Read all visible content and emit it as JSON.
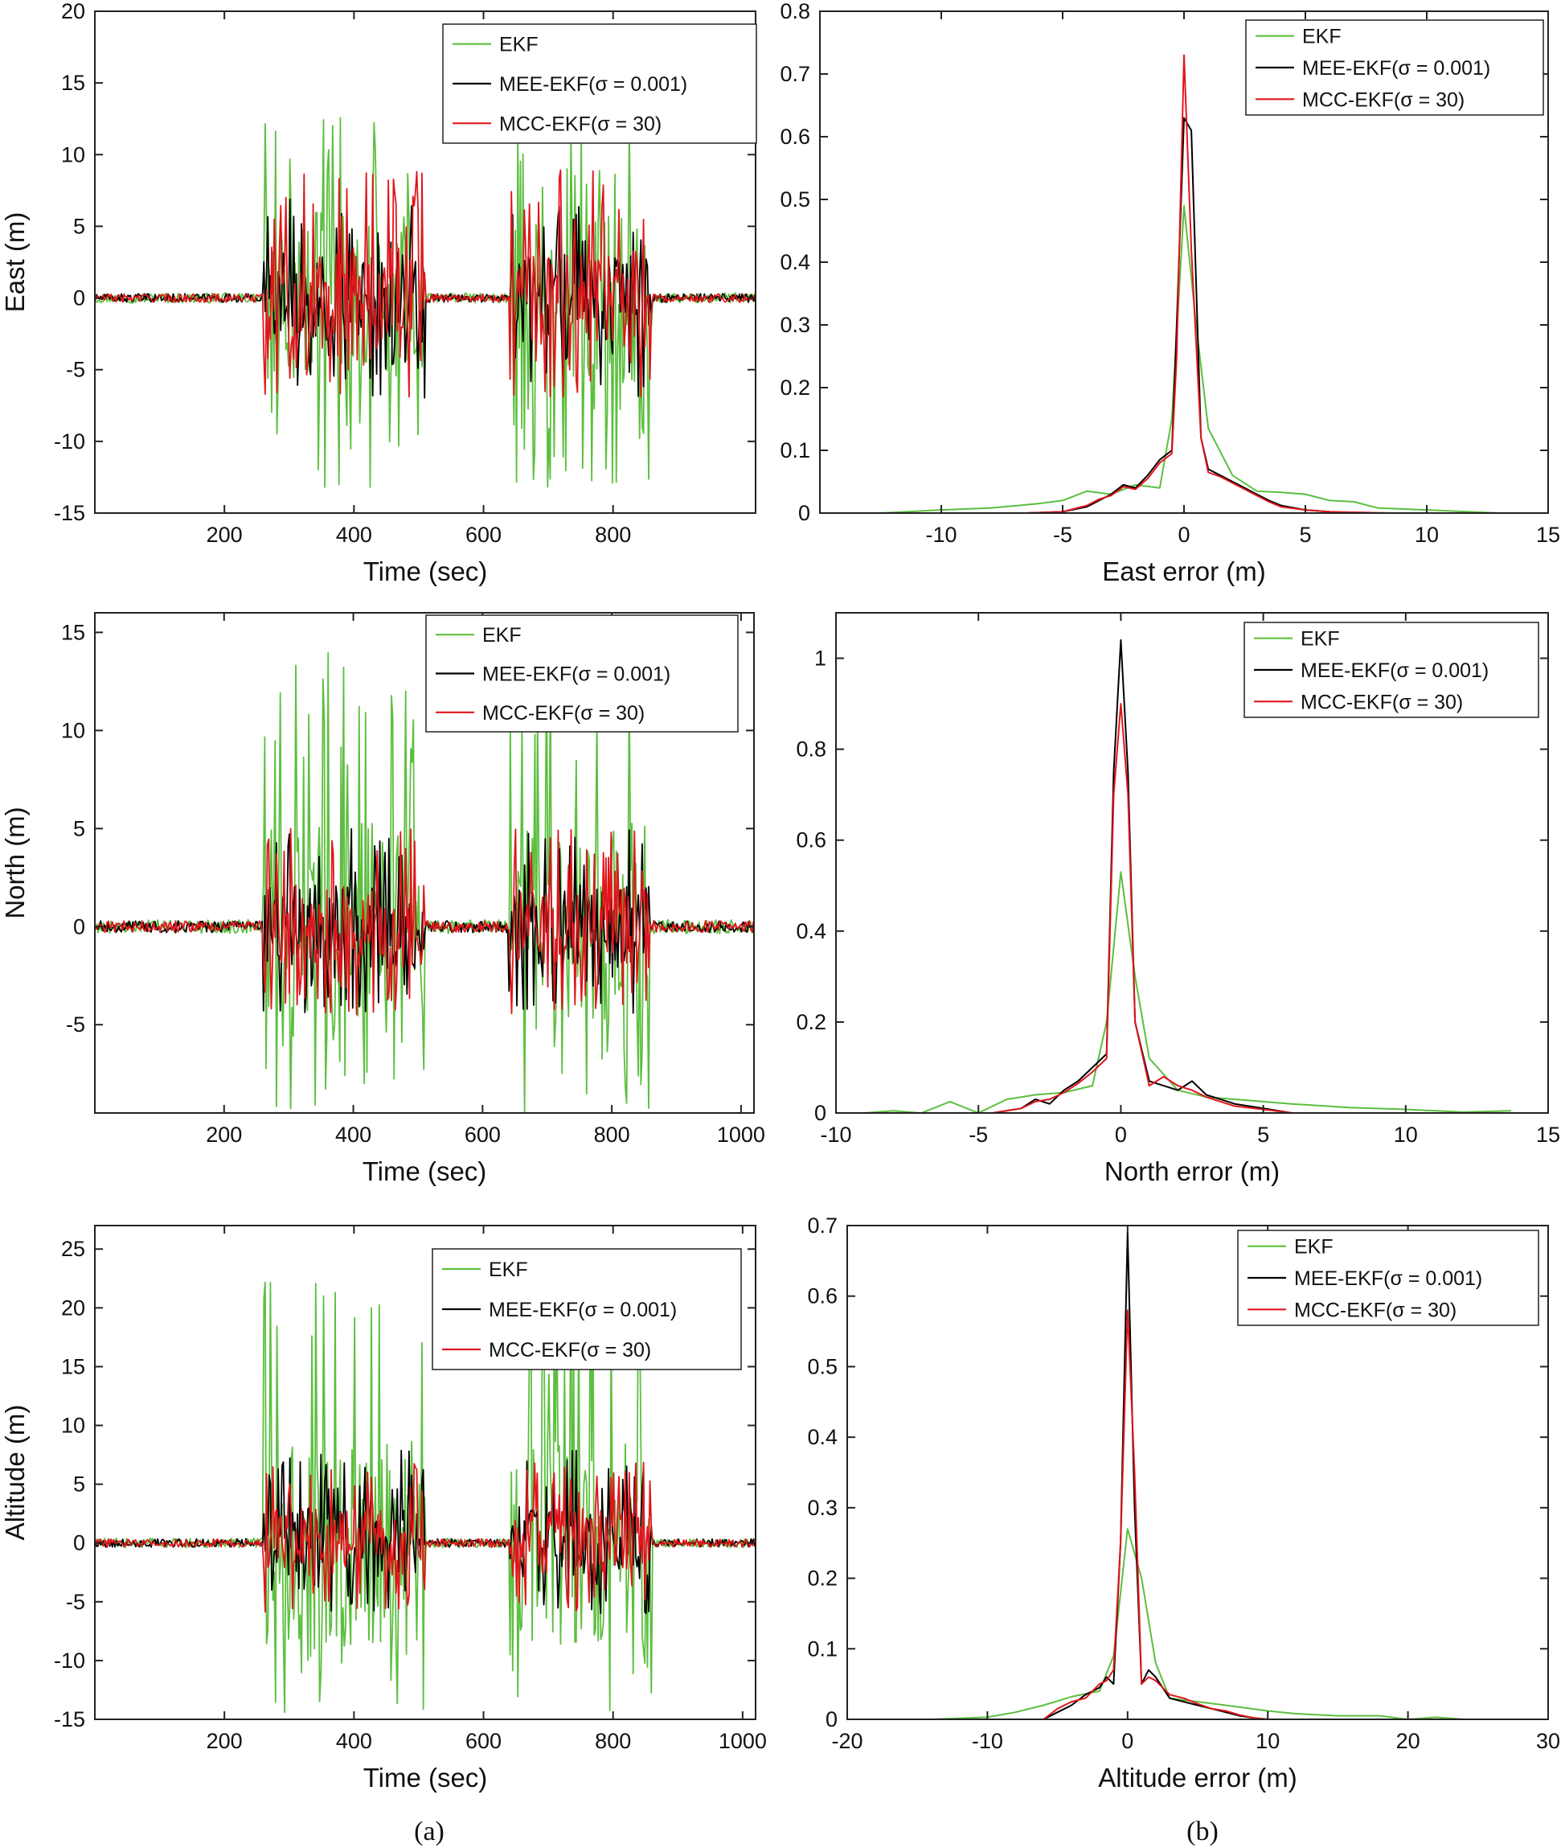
{
  "figure_captions": [
    "(a)",
    "(b)"
  ],
  "colors": {
    "EKF": "#5cbf3f",
    "MEE-EKF": "#000000",
    "MCC-EKF": "#e0161b",
    "axes": "#222222"
  },
  "chart_data": [
    {
      "id": "east-time",
      "type": "line",
      "title": "",
      "xlabel": "Time (sec)",
      "ylabel": "East (m)",
      "xlim": [
        0,
        1020
      ],
      "ylim": [
        -15,
        20
      ],
      "xticks": [
        200,
        400,
        600,
        800
      ],
      "yticks": [
        -15,
        -10,
        -5,
        0,
        5,
        10,
        15,
        20
      ],
      "legend_position": "top-right",
      "active_windows": [
        [
          260,
          510
        ],
        [
          640,
          860
        ]
      ],
      "series": [
        {
          "name": "EKF",
          "legend": "EKF",
          "color_key": "EKF",
          "noise_quiet": 0.35,
          "amp_active": [
            -13.3,
            13.4
          ]
        },
        {
          "name": "MEE-EKF",
          "legend": "MEE-EKF(σ = 0.001)",
          "color_key": "MEE-EKF",
          "noise_quiet": 0.3,
          "amp_active": [
            -7,
            7
          ]
        },
        {
          "name": "MCC-EKF",
          "legend": "MCC-EKF(σ = 30)",
          "color_key": "MCC-EKF",
          "noise_quiet": 0.3,
          "amp_active": [
            -7,
            9
          ]
        }
      ]
    },
    {
      "id": "east-hist",
      "type": "line",
      "title": "",
      "xlabel": "East error (m)",
      "ylabel": "",
      "xlim": [
        -15,
        15
      ],
      "ylim": [
        0,
        0.8
      ],
      "xticks": [
        -10,
        -5,
        0,
        5,
        10,
        15
      ],
      "yticks": [
        0,
        0.1,
        0.2,
        0.3,
        0.4,
        0.5,
        0.6,
        0.7,
        0.8
      ],
      "legend_position": "top-right",
      "series": [
        {
          "name": "EKF",
          "legend": "EKF",
          "color_key": "EKF",
          "x": [
            -12.5,
            -10,
            -8,
            -6,
            -5,
            -4,
            -3,
            -2,
            -1,
            -0.5,
            0,
            0.5,
            1,
            2,
            3,
            4,
            5,
            6,
            7,
            8,
            10,
            13
          ],
          "y": [
            0.0,
            0.005,
            0.008,
            0.015,
            0.02,
            0.035,
            0.03,
            0.045,
            0.04,
            0.15,
            0.49,
            0.3,
            0.135,
            0.06,
            0.035,
            0.033,
            0.03,
            0.02,
            0.018,
            0.008,
            0.005,
            0.0
          ]
        },
        {
          "name": "MEE-EKF",
          "legend": "MEE-EKF(σ = 0.001)",
          "color_key": "MEE-EKF",
          "x": [
            -6.5,
            -5,
            -4,
            -3.5,
            -3,
            -2.5,
            -2,
            -1.5,
            -1,
            -0.5,
            -0.3,
            0,
            0.3,
            0.7,
            1,
            1.5,
            2,
            2.5,
            3,
            3.5,
            4,
            5,
            6,
            7
          ],
          "y": [
            0.0,
            0.002,
            0.01,
            0.02,
            0.03,
            0.045,
            0.04,
            0.06,
            0.085,
            0.1,
            0.3,
            0.63,
            0.61,
            0.12,
            0.07,
            0.06,
            0.05,
            0.04,
            0.03,
            0.02,
            0.012,
            0.005,
            0.002,
            0.0
          ]
        },
        {
          "name": "MCC-EKF",
          "legend": "MCC-EKF(σ = 30)",
          "color_key": "MCC-EKF",
          "x": [
            -6.5,
            -5,
            -4,
            -3.5,
            -3,
            -2.5,
            -2,
            -1.5,
            -1,
            -0.5,
            -0.3,
            0,
            0.3,
            0.7,
            1,
            1.5,
            2,
            2.5,
            3,
            3.5,
            4,
            5,
            6,
            8.5
          ],
          "y": [
            0.0,
            0.002,
            0.012,
            0.022,
            0.028,
            0.042,
            0.038,
            0.055,
            0.08,
            0.095,
            0.25,
            0.73,
            0.42,
            0.12,
            0.065,
            0.058,
            0.048,
            0.038,
            0.028,
            0.018,
            0.01,
            0.005,
            0.002,
            0.0
          ]
        }
      ]
    },
    {
      "id": "north-time",
      "type": "line",
      "title": "",
      "xlabel": "Time (sec)",
      "ylabel": "North (m)",
      "xlim": [
        0,
        1020
      ],
      "ylim": [
        -9.5,
        16
      ],
      "xticks": [
        200,
        400,
        600,
        800,
        1000
      ],
      "yticks": [
        -5,
        0,
        5,
        10,
        15
      ],
      "legend_position": "top-right",
      "active_windows": [
        [
          260,
          510
        ],
        [
          640,
          860
        ]
      ],
      "series": [
        {
          "name": "EKF",
          "legend": "EKF",
          "color_key": "EKF",
          "noise_quiet": 0.35,
          "amp_active": [
            -9.5,
            14
          ]
        },
        {
          "name": "MEE-EKF",
          "legend": "MEE-EKF(σ = 0.001)",
          "color_key": "MEE-EKF",
          "noise_quiet": 0.3,
          "amp_active": [
            -4.5,
            5
          ]
        },
        {
          "name": "MCC-EKF",
          "legend": "MCC-EKF(σ = 30)",
          "color_key": "MCC-EKF",
          "noise_quiet": 0.3,
          "amp_active": [
            -4.5,
            5
          ]
        }
      ]
    },
    {
      "id": "north-hist",
      "type": "line",
      "title": "",
      "xlabel": "North error (m)",
      "ylabel": "",
      "xlim": [
        -10,
        15
      ],
      "ylim": [
        0,
        1.1
      ],
      "xticks": [
        -10,
        -5,
        0,
        5,
        10,
        15
      ],
      "yticks": [
        0,
        0.2,
        0.4,
        0.6,
        0.8,
        1
      ],
      "legend_position": "top-right",
      "series": [
        {
          "name": "EKF",
          "legend": "EKF",
          "color_key": "EKF",
          "x": [
            -9,
            -8,
            -7,
            -6,
            -5,
            -4,
            -3,
            -2,
            -1,
            -0.5,
            0,
            0.5,
            1,
            2,
            3,
            4,
            5,
            6,
            8,
            10,
            12,
            13.7
          ],
          "y": [
            0.0,
            0.005,
            0.0,
            0.025,
            0.0,
            0.03,
            0.04,
            0.045,
            0.06,
            0.2,
            0.53,
            0.3,
            0.12,
            0.05,
            0.035,
            0.03,
            0.025,
            0.02,
            0.012,
            0.008,
            0.002,
            0.005
          ]
        },
        {
          "name": "MEE-EKF",
          "legend": "MEE-EKF(σ = 0.001)",
          "color_key": "MEE-EKF",
          "x": [
            -4.5,
            -3.5,
            -3,
            -2.5,
            -2,
            -1.5,
            -1,
            -0.5,
            -0.25,
            0,
            0.25,
            0.5,
            1,
            1.5,
            2,
            2.5,
            3,
            3.5,
            4,
            5,
            6
          ],
          "y": [
            0.0,
            0.01,
            0.03,
            0.02,
            0.05,
            0.07,
            0.1,
            0.13,
            0.75,
            1.04,
            0.75,
            0.2,
            0.07,
            0.06,
            0.05,
            0.07,
            0.04,
            0.03,
            0.02,
            0.01,
            0.0
          ]
        },
        {
          "name": "MCC-EKF",
          "legend": "MCC-EKF(σ = 30)",
          "color_key": "MCC-EKF",
          "x": [
            -4.5,
            -3.5,
            -3,
            -2.5,
            -2,
            -1.5,
            -1,
            -0.5,
            -0.25,
            0,
            0.25,
            0.5,
            1,
            1.5,
            2,
            2.5,
            3,
            3.5,
            4,
            5,
            6
          ],
          "y": [
            0.0,
            0.01,
            0.025,
            0.03,
            0.045,
            0.065,
            0.09,
            0.12,
            0.7,
            0.9,
            0.7,
            0.2,
            0.06,
            0.08,
            0.06,
            0.05,
            0.035,
            0.025,
            0.015,
            0.008,
            0.0
          ]
        }
      ]
    },
    {
      "id": "altitude-time",
      "type": "line",
      "title": "",
      "xlabel": "Time (sec)",
      "ylabel": "Altitude (m)",
      "xlim": [
        0,
        1020
      ],
      "ylim": [
        -15,
        27
      ],
      "xticks": [
        200,
        400,
        600,
        800,
        1000
      ],
      "yticks": [
        -15,
        -10,
        -5,
        0,
        5,
        10,
        15,
        20,
        25
      ],
      "legend_position": "top-right",
      "active_windows": [
        [
          260,
          510
        ],
        [
          640,
          860
        ]
      ],
      "series": [
        {
          "name": "EKF",
          "legend": "EKF",
          "color_key": "EKF",
          "noise_quiet": 0.4,
          "amp_active": [
            -14.5,
            24
          ]
        },
        {
          "name": "MEE-EKF",
          "legend": "MEE-EKF(σ = 0.001)",
          "color_key": "MEE-EKF",
          "noise_quiet": 0.35,
          "amp_active": [
            -6,
            8
          ]
        },
        {
          "name": "MCC-EKF",
          "legend": "MCC-EKF(σ = 30)",
          "color_key": "MCC-EKF",
          "noise_quiet": 0.35,
          "amp_active": [
            -6,
            7
          ]
        }
      ]
    },
    {
      "id": "altitude-hist",
      "type": "line",
      "title": "",
      "xlabel": "Altitude error (m)",
      "ylabel": "",
      "xlim": [
        -20,
        30
      ],
      "ylim": [
        0,
        0.7
      ],
      "xticks": [
        -20,
        -10,
        0,
        10,
        20,
        30
      ],
      "yticks": [
        0,
        0.1,
        0.2,
        0.3,
        0.4,
        0.5,
        0.6,
        0.7
      ],
      "legend_position": "top-right",
      "series": [
        {
          "name": "EKF",
          "legend": "EKF",
          "color_key": "EKF",
          "x": [
            -14,
            -10,
            -8,
            -6,
            -4,
            -2,
            -1,
            0,
            1,
            2,
            3,
            5,
            7,
            10,
            12,
            15,
            18,
            20,
            22,
            24
          ],
          "y": [
            0.0,
            0.003,
            0.01,
            0.02,
            0.032,
            0.04,
            0.09,
            0.27,
            0.2,
            0.08,
            0.03,
            0.025,
            0.02,
            0.012,
            0.008,
            0.005,
            0.005,
            0.0,
            0.003,
            0.0
          ]
        },
        {
          "name": "MEE-EKF",
          "legend": "MEE-EKF(σ = 0.001)",
          "color_key": "MEE-EKF",
          "x": [
            -6,
            -5,
            -4,
            -3,
            -2,
            -1.5,
            -1,
            -0.5,
            0,
            0.5,
            1,
            1.5,
            2,
            3,
            4,
            5,
            6,
            7,
            8,
            9,
            10
          ],
          "y": [
            0.0,
            0.01,
            0.02,
            0.035,
            0.045,
            0.06,
            0.05,
            0.25,
            0.69,
            0.3,
            0.05,
            0.07,
            0.06,
            0.03,
            0.025,
            0.02,
            0.015,
            0.01,
            0.005,
            0.002,
            0.0
          ]
        },
        {
          "name": "MCC-EKF",
          "legend": "MCC-EKF(σ = 30)",
          "color_key": "MCC-EKF",
          "x": [
            -6,
            -5,
            -4,
            -3,
            -2,
            -1.5,
            -1,
            -0.5,
            0,
            0.5,
            1,
            1.5,
            2,
            3,
            4,
            5,
            6,
            7,
            8,
            9,
            10
          ],
          "y": [
            0.0,
            0.015,
            0.025,
            0.03,
            0.05,
            0.055,
            0.07,
            0.25,
            0.58,
            0.35,
            0.05,
            0.06,
            0.055,
            0.035,
            0.03,
            0.022,
            0.015,
            0.012,
            0.006,
            0.002,
            0.0
          ]
        }
      ]
    }
  ]
}
